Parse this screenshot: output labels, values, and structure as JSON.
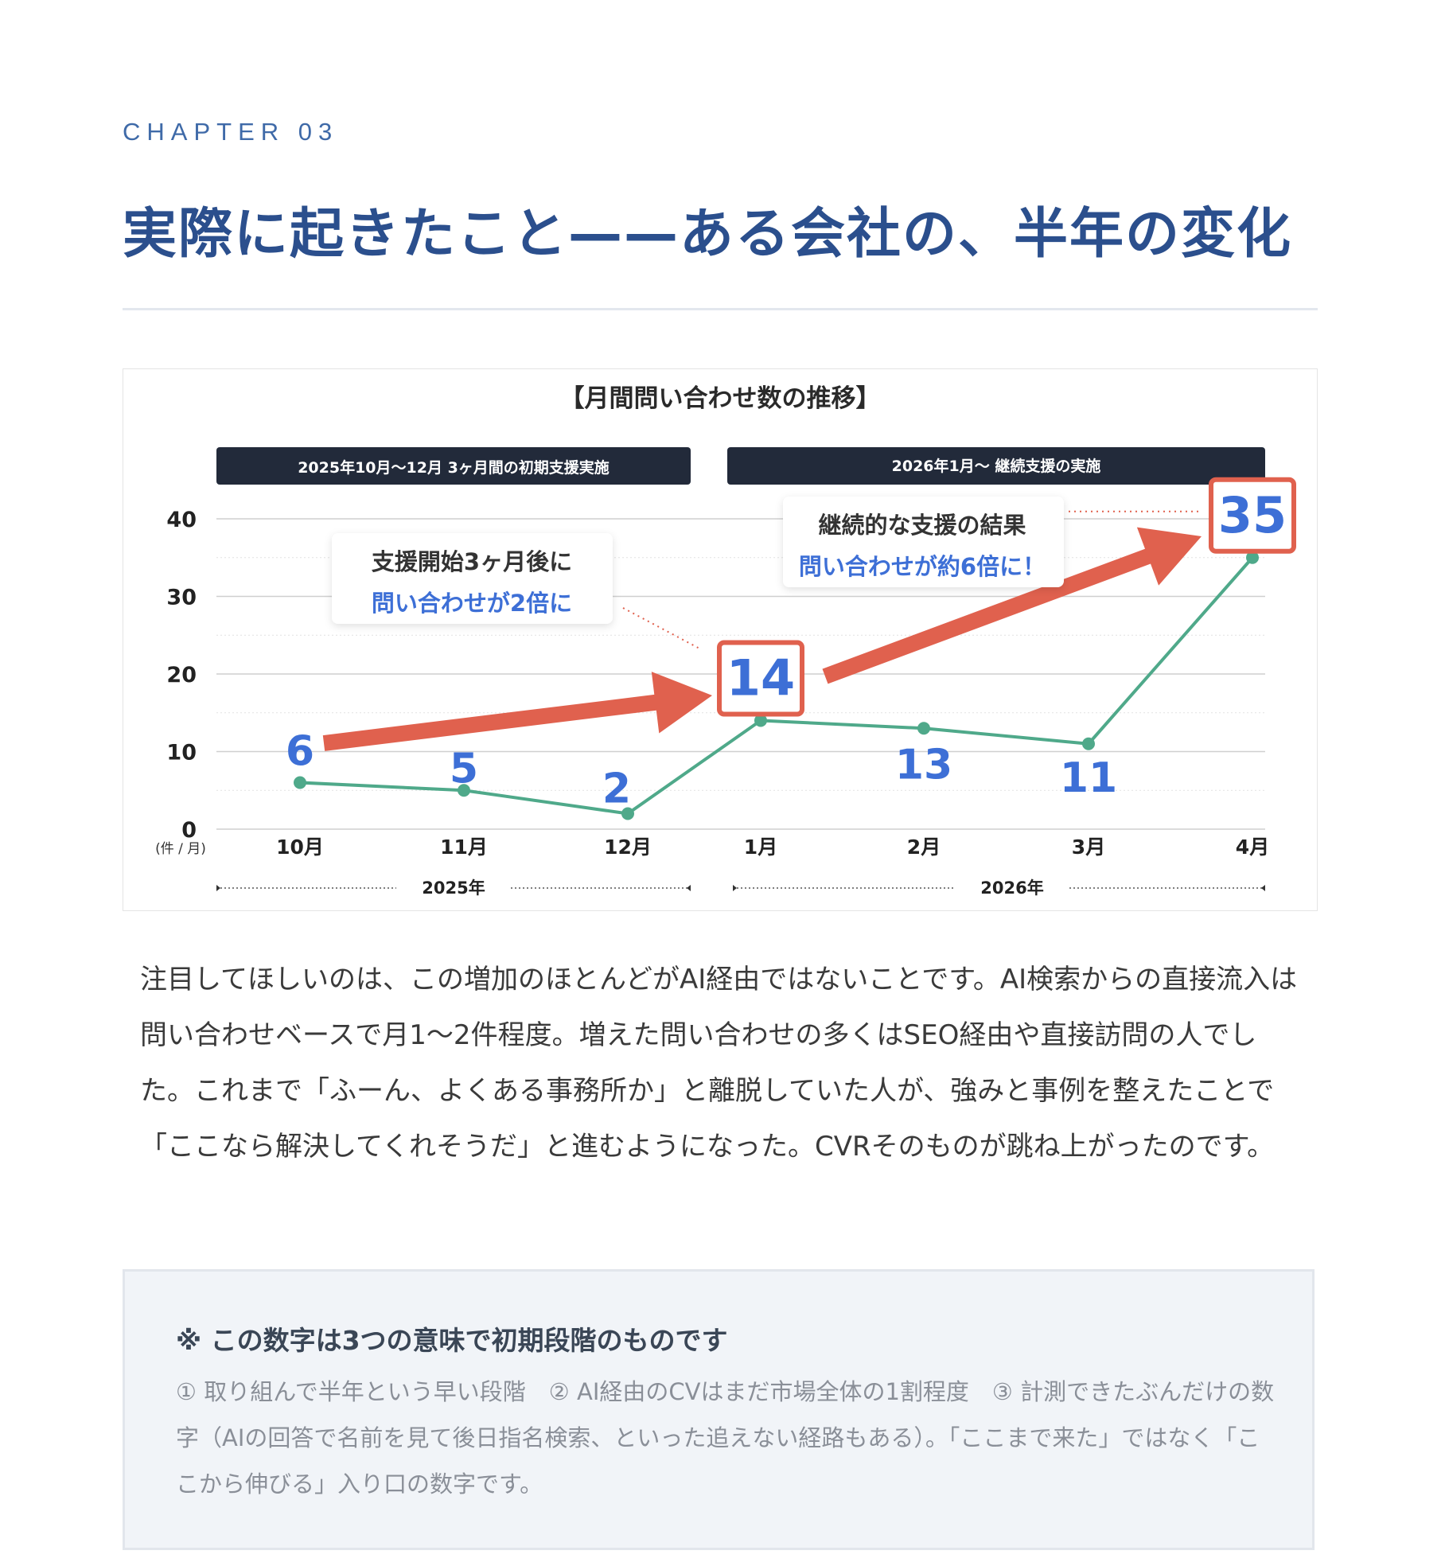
{
  "chapter_label": "CHAPTER 03",
  "page_title": "実際に起きたこと——ある会社の、半年の変化",
  "chart_data": {
    "type": "line",
    "title": "【月間問い合わせ数の推移】",
    "categories": [
      "10月",
      "11月",
      "12月",
      "1月",
      "2月",
      "3月",
      "4月"
    ],
    "values": [
      6,
      5,
      2,
      14,
      13,
      11,
      35
    ],
    "value_labels": [
      "6",
      "5",
      "2",
      "14",
      "13",
      "11",
      "35"
    ],
    "ylim": [
      0,
      40
    ],
    "yticks": [
      "0",
      "10",
      "20",
      "30",
      "40"
    ],
    "yunit": "(件 / 月)",
    "year_labels": [
      "2025年",
      "2026年"
    ],
    "period_banners": [
      "2025年10月〜12月 3ヶ月間の初期支援実施",
      "2026年1月〜 継続支援の実施"
    ],
    "callouts": [
      {
        "line1": "支援開始3ヶ月後に",
        "line2": "問い合わせが2倍に"
      },
      {
        "line1": "継続的な支援の結果",
        "line2": "問い合わせが約6倍に！"
      }
    ],
    "colors": {
      "line": "#4fa98a",
      "highlight": "#e0614e",
      "value_text": "#3d6fd6",
      "banner": "#222a3a"
    },
    "grid": true
  },
  "body_paragraph": "注目してほしいのは、この増加のほとんどがAI経由ではないことです。AI検索からの直接流入は問い合わせベースで月1〜2件程度。増えた問い合わせの多くはSEO経由や直接訪問の人でした。これまで「ふーん、よくある事務所か」と離脱していた人が、強みと事例を整えたことで「ここなら解決してくれそうだ」と進むようになった。CVRそのものが跳ね上がったのです。",
  "note": {
    "title": "※ この数字は3つの意味で初期段階のものです",
    "text": "① 取り組んで半年という早い段階　② AI経由のCVはまだ市場全体の1割程度　③ 計測できたぶんだけの数字（AIの回答で名前を見て後日指名検索、といった追えない経路もある）。「ここまで来た」ではなく「ここから伸びる」入り口の数字です。"
  }
}
